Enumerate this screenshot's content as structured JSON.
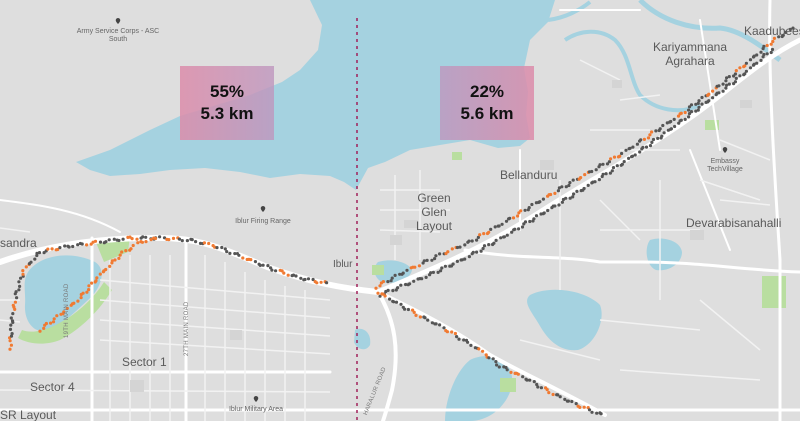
{
  "map": {
    "labels": {
      "army_service_corps": "Army Service Corps - ASC South",
      "kariyammana_agrahara": "Kariyammana Agrahara",
      "kaadubeesanahalli": "Kaadubees",
      "embassy_techvillage": "Embassy TechVillage",
      "bellanduru": "Bellanduru",
      "green_glen_layout": "Green Glen Layout",
      "devarabisanahalli": "Devarabisanahalli",
      "iblur_firing_range": "Iblur Firing Range",
      "iblur": "Iblur",
      "agara_partial": "sandra",
      "sector_1": "Sector 1",
      "sector_4": "Sector 4",
      "hsr_layout_partial": "SR Layout",
      "iblur_military_area": "Iblur Military Area",
      "road_19th_main": "19TH MAIN ROAD",
      "road_27th_main": "27TH MAIN ROAD",
      "road_haralur": "HARALUR ROAD"
    },
    "stats": {
      "left": {
        "percent": "55%",
        "distance": "5.3 km"
      },
      "right": {
        "percent": "22%",
        "distance": "5.6 km"
      }
    },
    "colors": {
      "water": "#a5d2e0",
      "land": "#dedede",
      "road": "#ffffff",
      "park": "#b9dea0",
      "dot_dark": "#555555",
      "dot_orange": "#f07a32",
      "divider": "#a0205a"
    }
  }
}
